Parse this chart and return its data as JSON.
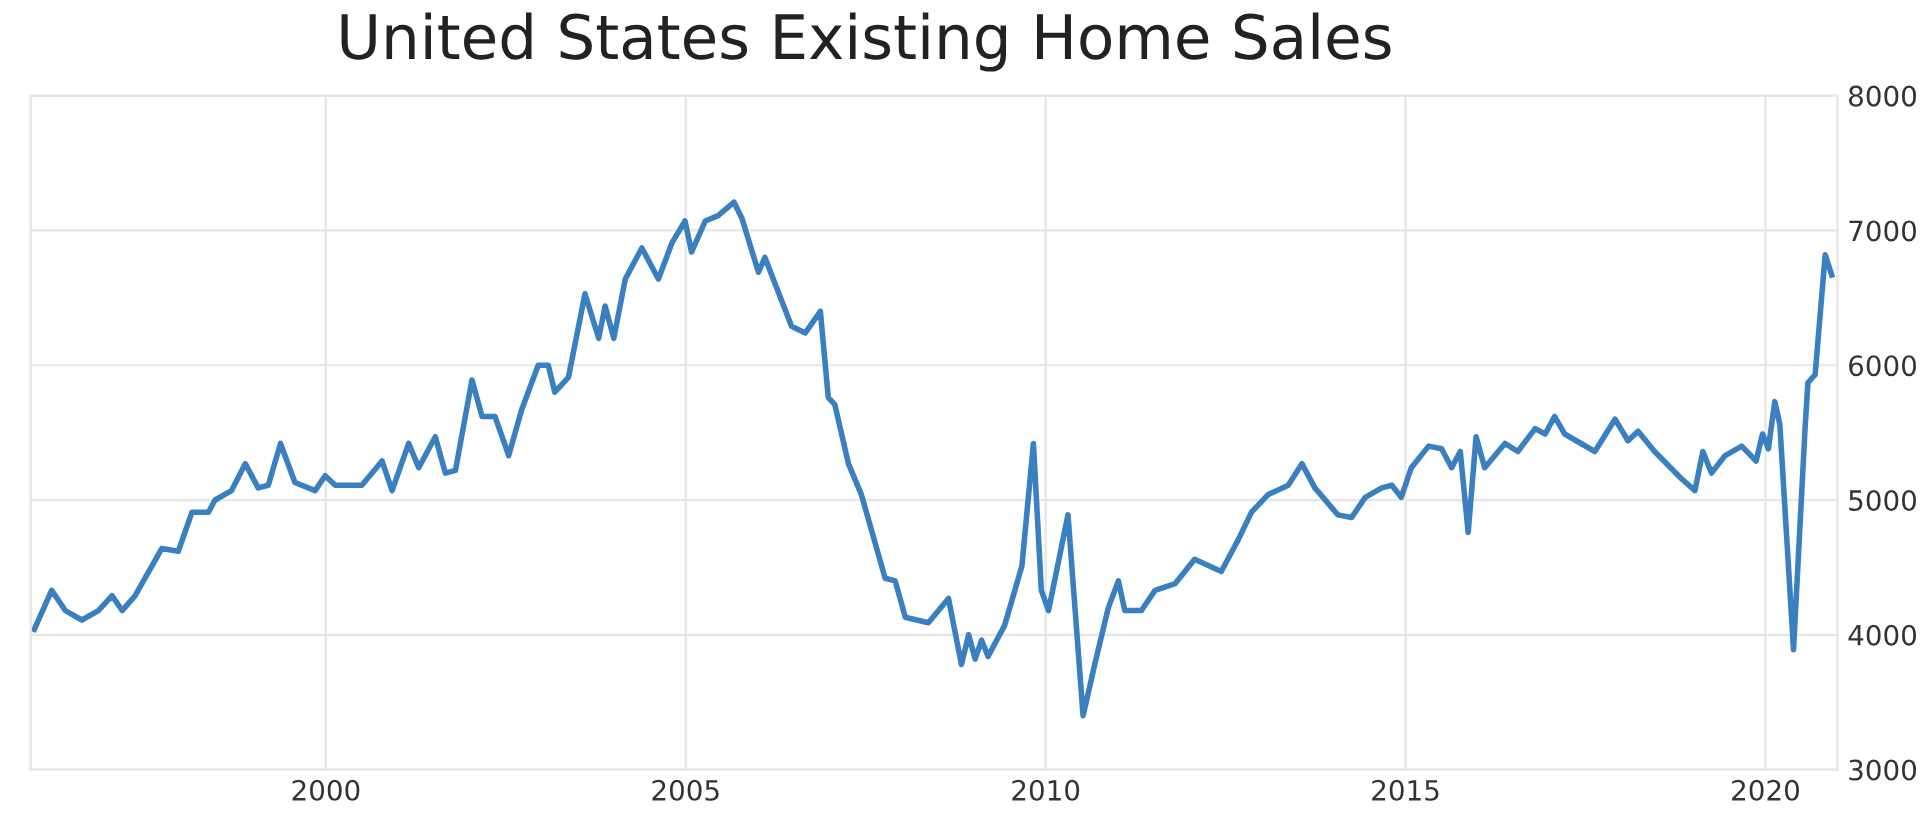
{
  "chart_data": {
    "type": "line",
    "title": "United States Existing Home Sales",
    "x": [
      1995.95,
      1996.19,
      1996.38,
      1996.61,
      1996.84,
      1997.03,
      1997.17,
      1997.35,
      1997.72,
      1997.95,
      1998.14,
      1998.37,
      1998.46,
      1998.69,
      1998.88,
      1999.06,
      1999.2,
      1999.37,
      1999.57,
      1999.85,
      1999.99,
      2000.13,
      2000.5,
      2000.78,
      2000.92,
      2001.15,
      2001.29,
      2001.52,
      2001.66,
      2001.8,
      2002.03,
      2002.17,
      2002.35,
      2002.54,
      2002.72,
      2002.95,
      2003.09,
      2003.18,
      2003.37,
      2003.6,
      2003.79,
      2003.88,
      2004.0,
      2004.16,
      2004.39,
      2004.62,
      2004.81,
      2004.99,
      2005.08,
      2005.27,
      2005.45,
      2005.67,
      2005.78,
      2006.01,
      2006.1,
      2006.47,
      2006.66,
      2006.87,
      2006.98,
      2007.07,
      2007.26,
      2007.44,
      2007.77,
      2007.91,
      2008.05,
      2008.37,
      2008.65,
      2008.83,
      2008.93,
      2009.02,
      2009.11,
      2009.2,
      2009.43,
      2009.67,
      2009.83,
      2009.94,
      2010.04,
      2010.31,
      2010.52,
      2010.69,
      2010.87,
      2011.01,
      2011.1,
      2011.33,
      2011.52,
      2011.8,
      2012.07,
      2012.44,
      2012.68,
      2012.86,
      2013.09,
      2013.37,
      2013.56,
      2013.74,
      2014.06,
      2014.25,
      2014.44,
      2014.67,
      2014.81,
      2014.94,
      2015.08,
      2015.32,
      2015.5,
      2015.64,
      2015.76,
      2015.87,
      2015.98,
      2016.1,
      2016.38,
      2016.56,
      2016.8,
      2016.94,
      2017.07,
      2017.21,
      2017.63,
      2017.91,
      2018.09,
      2018.23,
      2018.46,
      2018.83,
      2019.02,
      2019.13,
      2019.25,
      2019.44,
      2019.67,
      2019.87,
      2019.96,
      2020.04,
      2020.13,
      2020.2,
      2020.39,
      2020.55,
      2020.59,
      2020.69,
      2020.83,
      2020.92
    ],
    "series": [
      {
        "color": "#3a7fbf",
        "values": [
          4040,
          4330,
          4180,
          4110,
          4180,
          4290,
          4180,
          4290,
          4640,
          4620,
          4910,
          4910,
          5000,
          5070,
          5270,
          5090,
          5110,
          5420,
          5130,
          5070,
          5180,
          5110,
          5110,
          5290,
          5070,
          5420,
          5240,
          5470,
          5200,
          5220,
          5890,
          5620,
          5620,
          5330,
          5670,
          6000,
          6000,
          5800,
          5910,
          6530,
          6200,
          6440,
          6200,
          6640,
          6870,
          6640,
          6910,
          7070,
          6840,
          7070,
          7110,
          7210,
          7090,
          6690,
          6800,
          6290,
          6240,
          6400,
          5760,
          5710,
          5270,
          5040,
          4420,
          4400,
          4130,
          4090,
          4270,
          3780,
          4000,
          3820,
          3960,
          3840,
          4070,
          4510,
          5420,
          4330,
          4180,
          4890,
          3400,
          3800,
          4200,
          4400,
          4180,
          4180,
          4330,
          4380,
          4560,
          4470,
          4710,
          4910,
          5040,
          5110,
          5270,
          5090,
          4890,
          4870,
          5020,
          5090,
          5110,
          5020,
          5240,
          5400,
          5380,
          5240,
          5360,
          4760,
          5470,
          5240,
          5420,
          5360,
          5530,
          5490,
          5620,
          5490,
          5360,
          5600,
          5440,
          5510,
          5360,
          5160,
          5070,
          5360,
          5200,
          5330,
          5400,
          5290,
          5490,
          5380,
          5730,
          5560,
          3890,
          5530,
          5870,
          5930,
          6820,
          6670
        ]
      }
    ],
    "xlim": [
      1995.9,
      2021.0
    ],
    "xticks": [
      2000,
      2005,
      2010,
      2015,
      2020
    ],
    "ylim": [
      3000,
      8000
    ],
    "yticks": [
      3000,
      4000,
      5000,
      6000,
      7000,
      8000
    ],
    "grid": true
  }
}
